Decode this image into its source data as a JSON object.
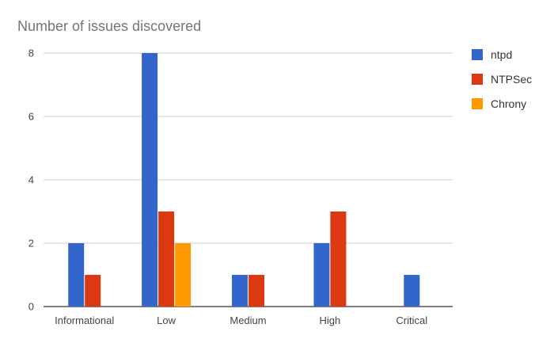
{
  "chart_data": {
    "type": "bar",
    "title": "Number of issues discovered",
    "xlabel": "",
    "ylabel": "",
    "categories": [
      "Informational",
      "Low",
      "Medium",
      "High",
      "Critical"
    ],
    "series": [
      {
        "name": "ntpd",
        "color": "#3366CC",
        "values": [
          2,
          8,
          1,
          2,
          1
        ]
      },
      {
        "name": "NTPSec",
        "color": "#DC3912",
        "values": [
          1,
          3,
          1,
          3,
          0
        ]
      },
      {
        "name": "Chrony",
        "color": "#FF9900",
        "values": [
          0,
          2,
          0,
          0,
          0
        ]
      }
    ],
    "ylim": [
      0,
      8
    ],
    "yticks": [
      0,
      2,
      4,
      6,
      8
    ],
    "grid": true,
    "legend_position": "right"
  }
}
